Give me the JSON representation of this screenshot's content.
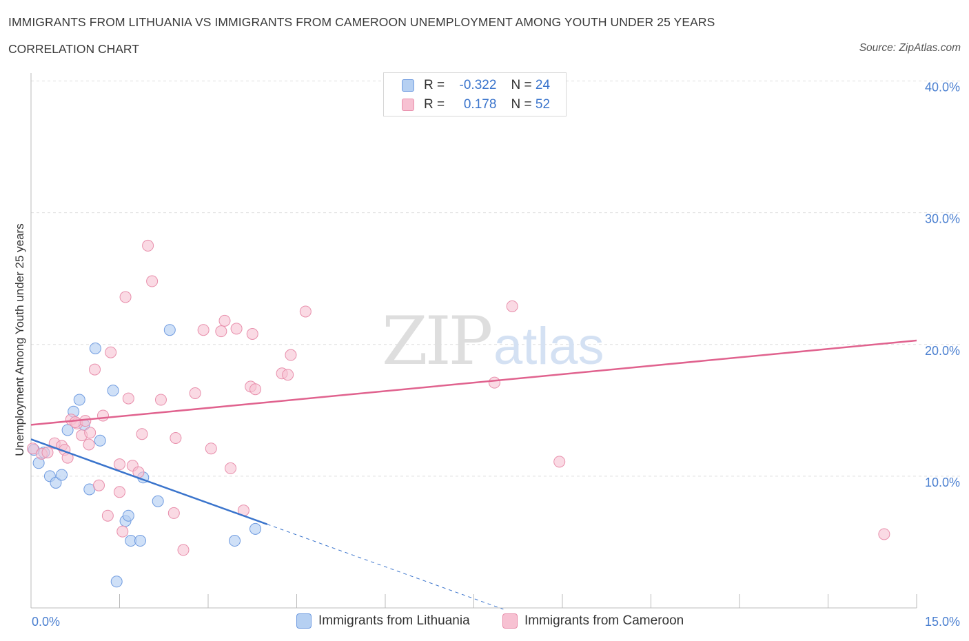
{
  "title": "IMMIGRANTS FROM LITHUANIA VS IMMIGRANTS FROM CAMEROON UNEMPLOYMENT AMONG YOUTH UNDER 25 YEARS",
  "subtitle": "CORRELATION CHART",
  "source": "Source: ZipAtlas.com",
  "watermark": {
    "zip": "ZIP",
    "atlas": "atlas"
  },
  "legend": {
    "r_label": "R =",
    "n_label": "N =",
    "rows": [
      {
        "r": "-0.322",
        "n": "24"
      },
      {
        "r": "0.178",
        "n": "52"
      }
    ]
  },
  "bottom_legend": [
    "Immigrants from Lithuania",
    "Immigrants from Cameroon"
  ],
  "colors": {
    "lithuania_fill": "#b6d0f2",
    "lithuania_stroke": "#6f9be0",
    "lithuania_line": "#3a74cc",
    "cameroon_fill": "#f7c1d2",
    "cameroon_stroke": "#e88eab",
    "cameroon_line": "#e0628e",
    "axis_label": "#4a7fd0",
    "grid": "#dddddd"
  },
  "chart_data": {
    "type": "scatter",
    "ylabel": "Unemployment Among Youth under 25 years",
    "xlim": [
      0,
      15
    ],
    "ylim": [
      0,
      40
    ],
    "x_tick_labels": [
      {
        "value": 0,
        "label": "0.0%"
      },
      {
        "value": 15,
        "label": "15.0%"
      }
    ],
    "y_tick_labels": [
      {
        "value": 10,
        "label": "10.0%"
      },
      {
        "value": 20,
        "label": "20.0%"
      },
      {
        "value": 30,
        "label": "30.0%"
      },
      {
        "value": 40,
        "label": "40.0%"
      }
    ],
    "grid": true,
    "legend_position": "top-center",
    "series": [
      {
        "name": "Immigrants from Lithuania",
        "r": -0.322,
        "n": 24,
        "points": [
          [
            0.05,
            12.0
          ],
          [
            0.13,
            11.0
          ],
          [
            0.22,
            11.8
          ],
          [
            0.32,
            10.0
          ],
          [
            0.42,
            9.5
          ],
          [
            0.52,
            10.1
          ],
          [
            0.62,
            13.5
          ],
          [
            0.72,
            14.9
          ],
          [
            0.82,
            15.8
          ],
          [
            0.9,
            13.9
          ],
          [
            0.99,
            9.0
          ],
          [
            1.17,
            12.7
          ],
          [
            1.09,
            19.7
          ],
          [
            1.39,
            16.5
          ],
          [
            1.45,
            2.0
          ],
          [
            1.6,
            6.6
          ],
          [
            1.65,
            7.0
          ],
          [
            1.69,
            5.1
          ],
          [
            1.85,
            5.1
          ],
          [
            1.9,
            9.9
          ],
          [
            2.15,
            8.1
          ],
          [
            2.35,
            21.1
          ],
          [
            3.45,
            5.1
          ],
          [
            3.8,
            6.0
          ]
        ],
        "trend": {
          "x0": 0,
          "y0": 12.8,
          "x1": 4.0,
          "y1": 6.35,
          "dash_to_x": 8.0,
          "dash_to_y": -0.1
        }
      },
      {
        "name": "Immigrants from Cameroon",
        "r": 0.178,
        "n": 52,
        "points": [
          [
            0.03,
            12.1
          ],
          [
            0.18,
            11.7
          ],
          [
            0.28,
            11.8
          ],
          [
            0.4,
            12.5
          ],
          [
            0.52,
            12.3
          ],
          [
            0.57,
            12.0
          ],
          [
            0.62,
            11.4
          ],
          [
            0.68,
            14.3
          ],
          [
            0.78,
            14.0
          ],
          [
            0.86,
            13.1
          ],
          [
            0.92,
            14.2
          ],
          [
            0.98,
            12.4
          ],
          [
            1.08,
            18.1
          ],
          [
            1.15,
            9.3
          ],
          [
            1.22,
            14.6
          ],
          [
            1.3,
            7.0
          ],
          [
            1.35,
            19.4
          ],
          [
            1.5,
            8.8
          ],
          [
            1.55,
            5.8
          ],
          [
            1.6,
            23.6
          ],
          [
            1.65,
            15.9
          ],
          [
            1.72,
            10.8
          ],
          [
            1.82,
            10.3
          ],
          [
            1.88,
            13.2
          ],
          [
            1.98,
            27.5
          ],
          [
            2.05,
            24.8
          ],
          [
            2.2,
            15.8
          ],
          [
            2.42,
            7.2
          ],
          [
            2.45,
            12.9
          ],
          [
            2.58,
            4.4
          ],
          [
            2.78,
            16.3
          ],
          [
            2.92,
            21.1
          ],
          [
            3.05,
            12.1
          ],
          [
            3.22,
            21.0
          ],
          [
            3.28,
            21.8
          ],
          [
            3.38,
            10.6
          ],
          [
            3.48,
            21.2
          ],
          [
            3.6,
            7.4
          ],
          [
            3.72,
            16.8
          ],
          [
            3.75,
            20.8
          ],
          [
            3.8,
            16.6
          ],
          [
            4.25,
            17.8
          ],
          [
            4.35,
            17.7
          ],
          [
            4.4,
            19.2
          ],
          [
            4.65,
            22.5
          ],
          [
            7.85,
            17.1
          ],
          [
            8.15,
            22.9
          ],
          [
            8.95,
            11.1
          ],
          [
            14.45,
            5.6
          ],
          [
            0.75,
            14.1
          ],
          [
            1.5,
            10.9
          ],
          [
            1.0,
            13.3
          ]
        ],
        "trend": {
          "x0": 0,
          "y0": 13.9,
          "x1": 15,
          "y1": 20.3
        }
      }
    ]
  }
}
